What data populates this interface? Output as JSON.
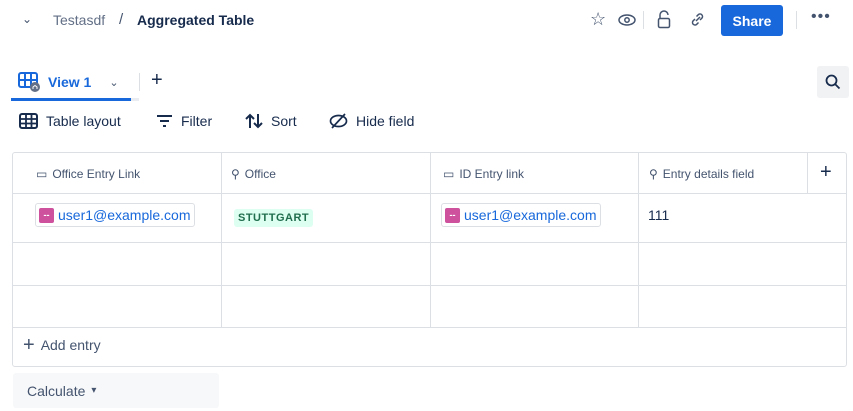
{
  "breadcrumb": {
    "parent": "Testasdf",
    "separator": "/",
    "title": "Aggregated Table"
  },
  "header": {
    "share_label": "Share",
    "icons": [
      "star-icon",
      "eye-icon",
      "unlock-icon",
      "link-icon",
      "more-icon"
    ]
  },
  "views": {
    "active": "View 1",
    "add": "+"
  },
  "toolbar": {
    "layout": "Table layout",
    "filter": "Filter",
    "sort": "Sort",
    "hide": "Hide field"
  },
  "table": {
    "columns": [
      {
        "label": "Office Entry Link",
        "icon": "folder-icon"
      },
      {
        "label": "Office",
        "icon": "search-icon"
      },
      {
        "label": "ID Entry link",
        "icon": "folder-icon"
      },
      {
        "label": "Entry details field",
        "icon": "search-icon"
      }
    ],
    "rows": [
      {
        "office_entry_link": "user1@example.com",
        "office": "STUTTGART",
        "id_entry_link": "user1@example.com",
        "entry_details": "111"
      }
    ],
    "add_entry": "Add entry"
  },
  "footer": {
    "calculate": "Calculate"
  },
  "colors": {
    "accent": "#1868db",
    "lozenge_bg": "#dcfff1",
    "lozenge_text": "#216e4e",
    "chip_icon": "#cd519d"
  }
}
